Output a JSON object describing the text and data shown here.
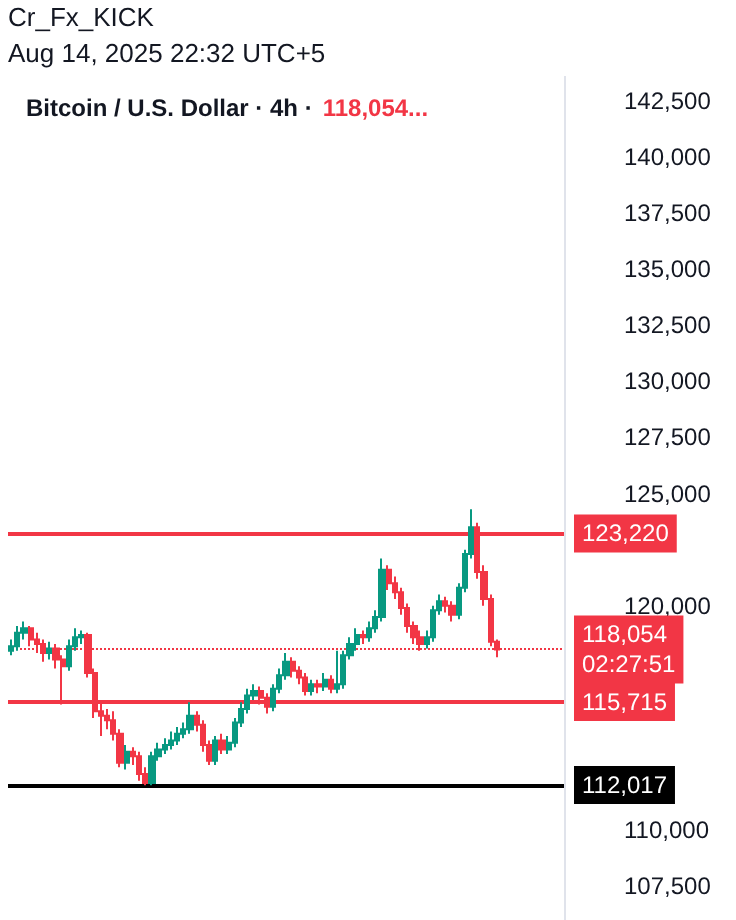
{
  "chart_data": {
    "type": "candlestick",
    "title": "Bitcoin / U.S. Dollar · 4h ·",
    "annotations": [
      "Cr_Fx_KICK",
      "Aug 14, 2025 22:32 UTC+5",
      "118,054...",
      "02:27:51"
    ],
    "categories": [
      null,
      null,
      null,
      null,
      null,
      null,
      null,
      null,
      null,
      null,
      null,
      null,
      null,
      null,
      null,
      null,
      null,
      null,
      null,
      null,
      null,
      null,
      null,
      null,
      null,
      null,
      null,
      null,
      null,
      null,
      null,
      null,
      null,
      null,
      null,
      null,
      null,
      null,
      null,
      null,
      null,
      null,
      null,
      null,
      null,
      null,
      null,
      null,
      null,
      null,
      null,
      null,
      null,
      null,
      null,
      null,
      null,
      null,
      null,
      null,
      null,
      null,
      null,
      null,
      null,
      null,
      null,
      null,
      null,
      null,
      null,
      null,
      null,
      null,
      null,
      null,
      null,
      null,
      null,
      null,
      null,
      null,
      null,
      null,
      null,
      null,
      null
    ],
    "colors": [
      "#089981",
      "#089981",
      "#089981",
      "#f23645",
      "#f23645",
      "#f23645",
      "#089981",
      "#f23645",
      "#f23645",
      "#089981",
      "#089981",
      "#089981",
      "#f23645",
      "#f23645",
      "#f23645",
      "#f23645",
      "#f23645",
      "#f23645",
      "#089981",
      "#f23645",
      "#f23645",
      "#f23645",
      "#089981",
      "#089981",
      "#089981",
      "#089981",
      "#089981",
      "#089981",
      "#089981",
      "#f23645",
      "#f23645",
      "#f23645",
      "#089981",
      "#f23645",
      "#089981",
      "#089981",
      "#089981",
      "#089981",
      "#089981",
      "#f23645",
      "#f23645",
      "#089981",
      "#089981",
      "#089981",
      "#f23645",
      "#f23645",
      "#f23645",
      "#089981",
      "#f23645",
      "#089981",
      "#f23645",
      "#089981",
      "#089981",
      "#089981",
      "#089981",
      "#f23645",
      "#089981",
      "#089981",
      "#089981",
      "#f23645",
      "#f23645",
      "#f23645",
      "#f23645",
      "#f23645",
      "#f23645",
      "#089981",
      "#089981",
      "#089981",
      "#f23645",
      "#f23645",
      "#089981",
      "#089981",
      "#089981",
      "#f23645",
      "#f23645",
      "#f23645",
      "#f23645",
      null,
      null,
      null,
      null,
      null,
      null,
      null,
      null,
      null,
      null
    ],
    "ohlc": [
      [
        118000,
        118500,
        117800,
        118200
      ],
      [
        118200,
        119100,
        118000,
        118800
      ],
      [
        118800,
        119300,
        118500,
        119000
      ],
      [
        119000,
        119100,
        118200,
        118500
      ],
      [
        118500,
        118800,
        117900,
        118300
      ],
      [
        118300,
        118500,
        117500,
        117900
      ],
      [
        117900,
        118400,
        117600,
        118100
      ],
      [
        118100,
        118300,
        117200,
        117600
      ],
      [
        117600,
        117800,
        115600,
        117300
      ],
      [
        117300,
        118500,
        117100,
        118200
      ],
      [
        118200,
        119000,
        118000,
        118600
      ],
      [
        118600,
        118900,
        118300,
        118700
      ],
      [
        118700,
        118800,
        116800,
        117000
      ],
      [
        117000,
        117200,
        115000,
        115300
      ],
      [
        115300,
        115700,
        114200,
        115100
      ],
      [
        115100,
        115400,
        114500,
        114900
      ],
      [
        114900,
        115300,
        114000,
        114300
      ],
      [
        114300,
        114500,
        112800,
        113000
      ],
      [
        113000,
        113800,
        112700,
        113500
      ],
      [
        113500,
        113700,
        112900,
        113300
      ],
      [
        113300,
        113500,
        112200,
        112500
      ],
      [
        112500,
        112800,
        112000,
        112100
      ],
      [
        112100,
        113500,
        112000,
        113300
      ],
      [
        113300,
        113900,
        113100,
        113600
      ],
      [
        113600,
        114100,
        113400,
        113800
      ],
      [
        113800,
        114400,
        113600,
        114000
      ],
      [
        114000,
        114600,
        113800,
        114300
      ],
      [
        114300,
        114800,
        114100,
        114500
      ],
      [
        114500,
        115700,
        114300,
        115100
      ],
      [
        115100,
        115300,
        114400,
        114700
      ],
      [
        114700,
        114900,
        113500,
        113800
      ],
      [
        113800,
        114000,
        112900,
        113100
      ],
      [
        113100,
        114200,
        112900,
        114000
      ],
      [
        114000,
        114300,
        113400,
        113600
      ],
      [
        113600,
        114200,
        113400,
        113900
      ],
      [
        113900,
        115000,
        113700,
        114800
      ],
      [
        114800,
        115700,
        114600,
        115400
      ],
      [
        115400,
        116300,
        115200,
        116000
      ],
      [
        116000,
        116500,
        115800,
        116200
      ],
      [
        116200,
        116400,
        115600,
        115900
      ],
      [
        115900,
        116100,
        115200,
        115500
      ],
      [
        115500,
        116500,
        115300,
        116300
      ],
      [
        116300,
        117200,
        116100,
        116900
      ],
      [
        116900,
        117900,
        116700,
        117500
      ],
      [
        117500,
        117700,
        116800,
        117100
      ],
      [
        117100,
        117300,
        116500,
        116800
      ],
      [
        116800,
        117000,
        116000,
        116200
      ],
      [
        116200,
        116700,
        116000,
        116500
      ],
      [
        116500,
        116700,
        116100,
        116400
      ],
      [
        116400,
        117000,
        116200,
        116700
      ],
      [
        116700,
        116900,
        116100,
        116300
      ],
      [
        116300,
        118000,
        116100,
        116500
      ],
      [
        116500,
        118000,
        116300,
        117800
      ],
      [
        117800,
        118600,
        117600,
        118300
      ],
      [
        118300,
        119000,
        118000,
        118700
      ],
      [
        118700,
        118900,
        118300,
        118600
      ],
      [
        118600,
        119300,
        118400,
        119000
      ],
      [
        119000,
        119800,
        118800,
        119500
      ],
      [
        119500,
        122100,
        119300,
        121600
      ],
      [
        121600,
        121800,
        120700,
        121000
      ],
      [
        121000,
        121300,
        120300,
        120600
      ],
      [
        120600,
        120800,
        119600,
        119900
      ],
      [
        119900,
        120100,
        118800,
        119100
      ],
      [
        119100,
        119300,
        118300,
        118600
      ],
      [
        118600,
        118900,
        118000,
        118300
      ],
      [
        118300,
        118900,
        118100,
        118600
      ],
      [
        118600,
        120000,
        118400,
        119800
      ],
      [
        119800,
        120500,
        119600,
        120200
      ],
      [
        120200,
        120400,
        119700,
        120000
      ],
      [
        120000,
        120200,
        119300,
        119600
      ],
      [
        119600,
        121000,
        119400,
        120800
      ],
      [
        120800,
        122500,
        120600,
        122300
      ],
      [
        122300,
        124300,
        122100,
        123500
      ],
      [
        123500,
        123700,
        121200,
        121500
      ],
      [
        121500,
        121800,
        120000,
        120300
      ],
      [
        120300,
        120500,
        118200,
        118400
      ],
      [
        118400,
        118500,
        117700,
        118054
      ],
      null,
      null,
      null,
      null,
      null,
      null,
      null,
      null,
      null,
      null
    ],
    "ylim": [
      106000,
      143600
    ],
    "yticks": [
      {
        "value": 107500,
        "label": "107,500"
      },
      {
        "value": 110000,
        "label": "110,000"
      },
      {
        "value": 120000,
        "label": "120,000"
      },
      {
        "value": 125000,
        "label": "125,000"
      },
      {
        "value": 127500,
        "label": "127,500"
      },
      {
        "value": 130000,
        "label": "130,000"
      },
      {
        "value": 132500,
        "label": "132,500"
      },
      {
        "value": 135000,
        "label": "135,000"
      },
      {
        "value": 137500,
        "label": "137,500"
      },
      {
        "value": 140000,
        "label": "140,000"
      },
      {
        "value": 142500,
        "label": "142,500"
      }
    ],
    "tick_labels": "y",
    "ref_lines": [
      {
        "axis": "y",
        "value": 123220,
        "label": "123,220",
        "color": "#f23645",
        "line_style": "solid"
      },
      {
        "axis": "y",
        "value": 118054,
        "label": "118,054",
        "color": "#f23645",
        "line_style": "dotted"
      },
      {
        "axis": "y",
        "value": 115715,
        "label": "115,715",
        "color": "#f23645",
        "line_style": "solid"
      },
      {
        "axis": "y",
        "value": 112017,
        "label": "112,017",
        "color": "#000000",
        "line_style": "solid"
      }
    ]
  }
}
